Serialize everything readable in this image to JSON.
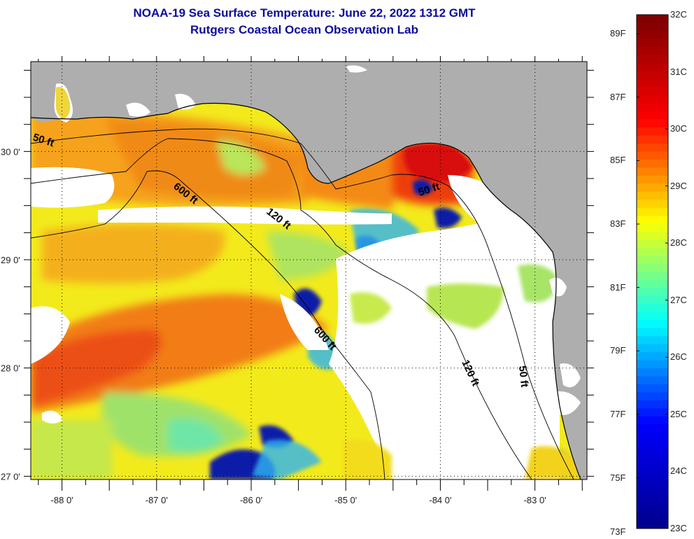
{
  "title": {
    "line1": "NOAA-19 Sea Surface Temperature:  June 22, 2022 1312 GMT",
    "line2": "Rutgers Coastal Ocean Observation Lab"
  },
  "map": {
    "lon_range": [
      -88.33,
      -82.45
    ],
    "lat_range": [
      26.97,
      30.83
    ],
    "x_ticks": [
      {
        "value": -88,
        "label": "-88 0'"
      },
      {
        "value": -87,
        "label": "-87 0'"
      },
      {
        "value": -86,
        "label": "-86 0'"
      },
      {
        "value": -85,
        "label": "-85 0'"
      },
      {
        "value": -84,
        "label": "-84 0'"
      },
      {
        "value": -83,
        "label": "-83 0'"
      }
    ],
    "y_ticks": [
      {
        "value": 30,
        "label": "30 0'"
      },
      {
        "value": 29,
        "label": "29 0'"
      },
      {
        "value": 28,
        "label": "28 0'"
      },
      {
        "value": 27,
        "label": "27 0'"
      }
    ],
    "contour_labels": [
      {
        "id": "c50a",
        "text": "50 ft"
      },
      {
        "id": "c600a",
        "text": "600 ft"
      },
      {
        "id": "c120a",
        "text": "120 ft"
      },
      {
        "id": "c50b",
        "text": "50 ft"
      },
      {
        "id": "c600b",
        "text": "600 ft"
      },
      {
        "id": "c120b",
        "text": "120 ft"
      },
      {
        "id": "c50c",
        "text": "50 ft"
      }
    ],
    "land_color": "#aeaeae",
    "cloud_color": "#ffffff"
  },
  "colorbar": {
    "colors": [
      "#00008f",
      "#0000ff",
      "#00ffff",
      "#ffff00",
      "#ff0000",
      "#800000"
    ],
    "celsius_range": [
      23,
      32
    ],
    "fahrenheit_labels": [
      "89F",
      "87F",
      "85F",
      "83F",
      "81F",
      "79F",
      "77F",
      "75F",
      "73F"
    ],
    "fahrenheit_values": [
      89,
      87,
      85,
      83,
      81,
      79,
      77,
      75,
      73
    ],
    "celsius_labels": [
      "32C",
      "31C",
      "30C",
      "29C",
      "28C",
      "27C",
      "26C",
      "25C",
      "24C",
      "23C"
    ],
    "celsius_values": [
      32,
      31,
      30,
      29,
      28,
      27,
      26,
      25,
      24,
      23
    ]
  }
}
